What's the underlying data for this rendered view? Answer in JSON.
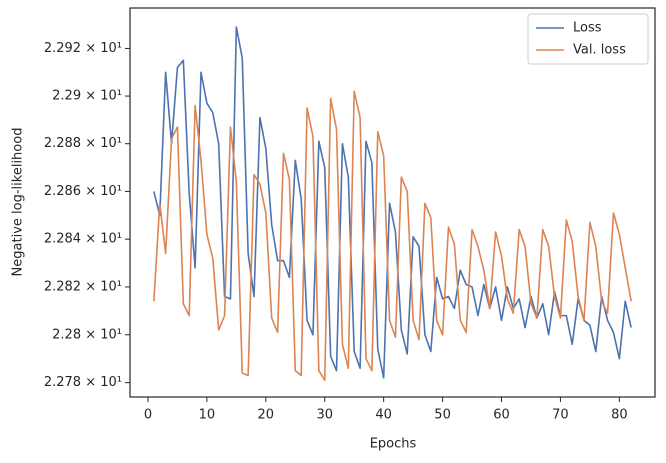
{
  "chart_data": {
    "type": "line",
    "x_label": "Epochs",
    "y_label": "Negative log-likelihood",
    "x": [
      1,
      2,
      3,
      4,
      5,
      6,
      7,
      8,
      9,
      10,
      11,
      12,
      13,
      14,
      15,
      16,
      17,
      18,
      19,
      20,
      21,
      22,
      23,
      24,
      25,
      26,
      27,
      28,
      29,
      30,
      31,
      32,
      33,
      34,
      35,
      36,
      37,
      38,
      39,
      40,
      41,
      42,
      43,
      44,
      45,
      46,
      47,
      48,
      49,
      50,
      51,
      52,
      53,
      54,
      55,
      56,
      57,
      58,
      59,
      60,
      61,
      62,
      63,
      64,
      65,
      66,
      67,
      68,
      69,
      70,
      71,
      72,
      73,
      74,
      75,
      76,
      77,
      78,
      79,
      80,
      81,
      82
    ],
    "series": [
      {
        "name": "Loss",
        "color": "#4c72b0",
        "values": [
          22.86,
          22.85,
          22.91,
          22.88,
          22.912,
          22.915,
          22.859,
          22.828,
          22.91,
          22.897,
          22.893,
          22.88,
          22.816,
          22.815,
          22.929,
          22.916,
          22.834,
          22.816,
          22.891,
          22.878,
          22.846,
          22.831,
          22.831,
          22.824,
          22.873,
          22.857,
          22.806,
          22.8,
          22.881,
          22.87,
          22.791,
          22.785,
          22.88,
          22.866,
          22.793,
          22.786,
          22.881,
          22.872,
          22.794,
          22.782,
          22.855,
          22.843,
          22.802,
          22.792,
          22.841,
          22.837,
          22.8,
          22.793,
          22.824,
          22.815,
          22.816,
          22.811,
          22.827,
          22.821,
          22.82,
          22.808,
          22.821,
          22.811,
          22.82,
          22.806,
          22.82,
          22.811,
          22.815,
          22.803,
          22.816,
          22.807,
          22.813,
          22.8,
          22.818,
          22.808,
          22.808,
          22.796,
          22.815,
          22.806,
          22.804,
          22.793,
          22.816,
          22.806,
          22.801,
          22.79,
          22.814,
          22.803
        ]
      },
      {
        "name": "Val. loss",
        "color": "#dd8452",
        "values": [
          22.814,
          22.855,
          22.834,
          22.882,
          22.887,
          22.813,
          22.808,
          22.896,
          22.873,
          22.842,
          22.832,
          22.802,
          22.808,
          22.887,
          22.864,
          22.784,
          22.783,
          22.867,
          22.863,
          22.851,
          22.807,
          22.801,
          22.876,
          22.865,
          22.785,
          22.783,
          22.895,
          22.883,
          22.785,
          22.781,
          22.899,
          22.886,
          22.796,
          22.786,
          22.902,
          22.891,
          22.79,
          22.785,
          22.885,
          22.875,
          22.806,
          22.799,
          22.866,
          22.86,
          22.806,
          22.798,
          22.855,
          22.849,
          22.806,
          22.8,
          22.845,
          22.838,
          22.806,
          22.801,
          22.844,
          22.837,
          22.827,
          22.811,
          22.843,
          22.833,
          22.815,
          22.809,
          22.844,
          22.837,
          22.813,
          22.807,
          22.844,
          22.837,
          22.816,
          22.807,
          22.848,
          22.839,
          22.816,
          22.806,
          22.847,
          22.837,
          22.814,
          22.809,
          22.851,
          22.842,
          22.828,
          22.814
        ]
      }
    ],
    "xlim": [
      -3.05,
      86.05
    ],
    "ylim": [
      22.774,
      22.937
    ],
    "log_y": true,
    "xticks": [
      0,
      10,
      20,
      30,
      40,
      50,
      60,
      70,
      80
    ],
    "yticks": [
      {
        "value": 22.78,
        "label": "2.278 × 10¹"
      },
      {
        "value": 22.8,
        "label": "2.28 × 10¹"
      },
      {
        "value": 22.82,
        "label": "2.282 × 10¹"
      },
      {
        "value": 22.84,
        "label": "2.284 × 10¹"
      },
      {
        "value": 22.86,
        "label": "2.286 × 10¹"
      },
      {
        "value": 22.88,
        "label": "2.288 × 10¹"
      },
      {
        "value": 22.9,
        "label": "2.29 × 10¹"
      },
      {
        "value": 22.92,
        "label": "2.292 × 10¹"
      }
    ],
    "legend": "upper right"
  }
}
